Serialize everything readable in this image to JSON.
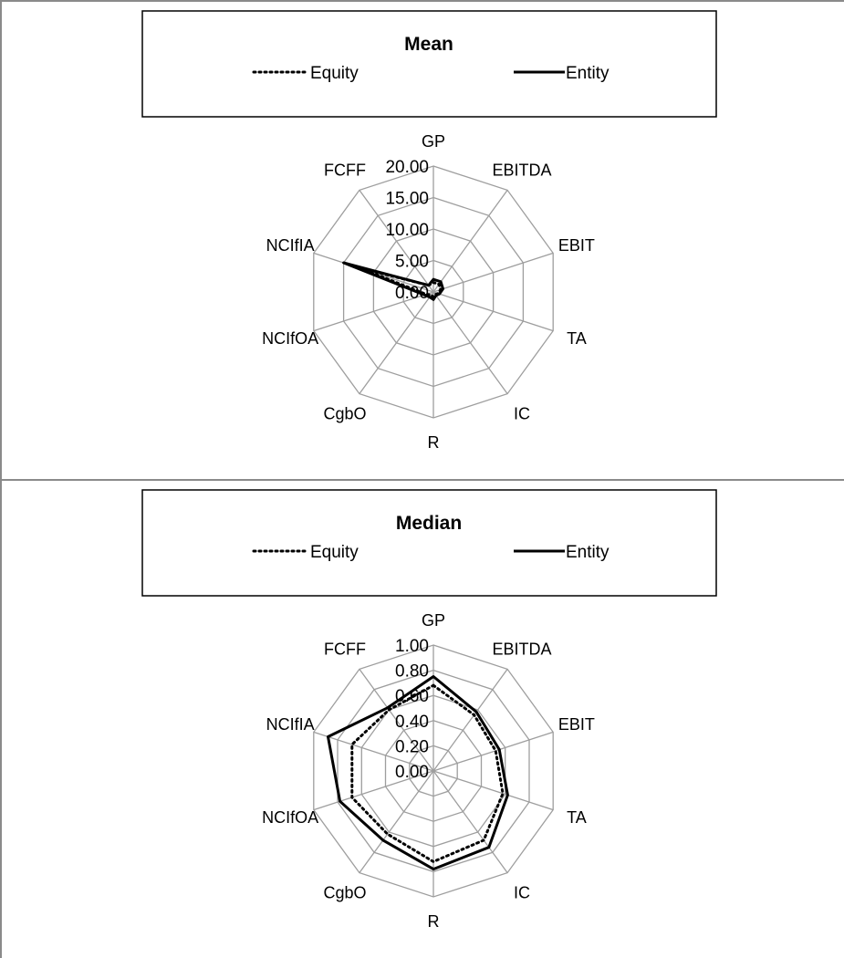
{
  "chart_data": [
    {
      "type": "radar",
      "title": "Mean",
      "categories": [
        "GP",
        "EBITDA",
        "EBIT",
        "TA",
        "IC",
        "R",
        "CgbO",
        "NCIfOA",
        "NCIfIA",
        "FCFF"
      ],
      "rlim": [
        0,
        20
      ],
      "ticks": [
        "0.00",
        "5.00",
        "10.00",
        "15.00",
        "20.00"
      ],
      "grid": true,
      "legend_position": "top",
      "series": [
        {
          "name": "Equity",
          "style": "dotted",
          "values": [
            1.5,
            1.5,
            1.2,
            0.8,
            0.5,
            0.8,
            0.6,
            1.2,
            12.5,
            1.3
          ]
        },
        {
          "name": "Entity",
          "style": "solid",
          "values": [
            2.0,
            2.0,
            1.6,
            1.0,
            0.7,
            1.2,
            1.0,
            1.5,
            15.0,
            1.3
          ]
        }
      ]
    },
    {
      "type": "radar",
      "title": "Median",
      "categories": [
        "GP",
        "EBITDA",
        "EBIT",
        "TA",
        "IC",
        "R",
        "CgbO",
        "NCIfOA",
        "NCIfIA",
        "FCFF"
      ],
      "rlim": [
        0,
        1
      ],
      "ticks": [
        "0.00",
        "0.20",
        "0.40",
        "0.60",
        "0.80",
        "1.00"
      ],
      "grid": true,
      "legend_position": "top",
      "series": [
        {
          "name": "Equity",
          "style": "dotted",
          "values": [
            0.68,
            0.55,
            0.52,
            0.58,
            0.68,
            0.72,
            0.62,
            0.68,
            0.68,
            0.6
          ]
        },
        {
          "name": "Entity",
          "style": "solid",
          "values": [
            0.75,
            0.58,
            0.55,
            0.62,
            0.75,
            0.78,
            0.68,
            0.78,
            0.88,
            0.62
          ]
        }
      ]
    }
  ],
  "colors": {
    "grid": "#9e9e9e",
    "frame": "#8a8a8a",
    "series": "#000000"
  }
}
